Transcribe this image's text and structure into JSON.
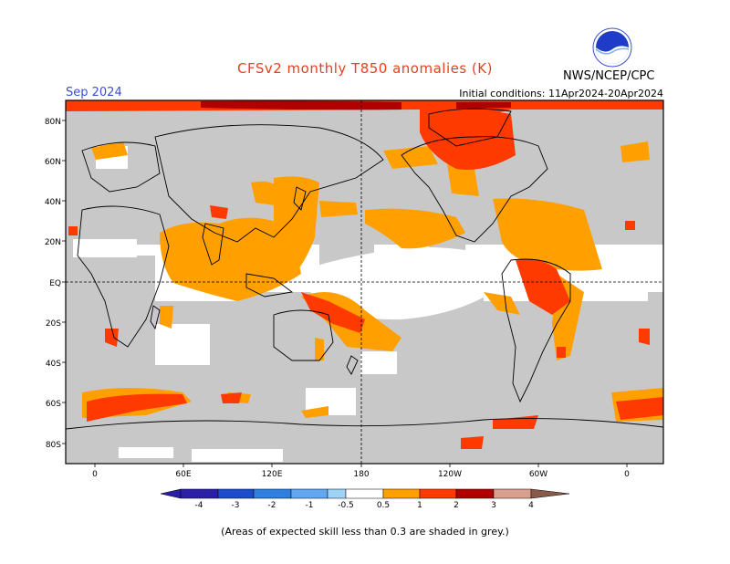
{
  "header": {
    "title": "CFSv2 monthly T850 anomalies (K)",
    "org": "NWS/NCEP/CPC",
    "logo_text": "NOAA",
    "month": "Sep 2024",
    "initial_conditions": "Initial conditions: 11Apr2024-20Apr2024"
  },
  "colors": {
    "title": "#e8401c",
    "month": "#3a4fd0",
    "skill_grey": "#c8c8c8",
    "orange": "#ffa000",
    "red_orange": "#ff3a00",
    "dark_red": "#b00000",
    "coast": "#000000"
  },
  "map": {
    "lat_labels": [
      "80N",
      "60N",
      "40N",
      "20N",
      "EQ",
      "20S",
      "40S",
      "60S",
      "80S"
    ],
    "lon_labels": [
      "0",
      "60E",
      "120E",
      "180",
      "120W",
      "60W",
      "0"
    ]
  },
  "legend": {
    "labels": [
      "-4",
      "-3",
      "-2",
      "-1",
      "-0.5",
      "0.5",
      "1",
      "2",
      "3",
      "4"
    ],
    "colors": [
      "#2b1fa8",
      "#1c4ccc",
      "#2f7fe0",
      "#61a8f0",
      "#9ed2f7",
      "#ffffff",
      "#ffa000",
      "#ff3a00",
      "#b00000",
      "#d9a090",
      "#8a5a48"
    ]
  },
  "footnote": "(Areas of expected skill less than 0.3 are shaded in grey.)"
}
